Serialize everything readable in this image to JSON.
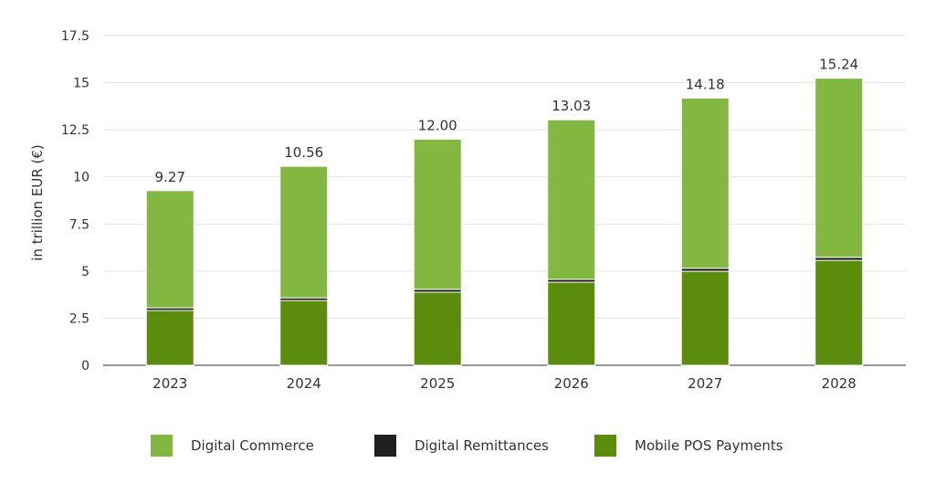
{
  "chart_data": {
    "type": "bar",
    "stacked": true,
    "categories": [
      "2023",
      "2024",
      "2025",
      "2026",
      "2027",
      "2028"
    ],
    "series": [
      {
        "name": "Mobile POS Payments",
        "color": "#5b8c0c",
        "values": [
          2.91,
          3.44,
          3.88,
          4.41,
          4.99,
          5.57
        ]
      },
      {
        "name": "Digital Remittances",
        "color": "#1f1f1f",
        "values": [
          0.14,
          0.14,
          0.15,
          0.15,
          0.16,
          0.16
        ]
      },
      {
        "name": "Digital Commerce",
        "color": "#82b840",
        "values": [
          6.22,
          6.98,
          7.97,
          8.47,
          9.03,
          9.51
        ]
      }
    ],
    "totals": [
      "9.27",
      "10.56",
      "12.00",
      "13.03",
      "14.18",
      "15.24"
    ],
    "ylabel": "in trillion EUR (€)",
    "ylim": [
      0,
      17.5
    ],
    "yticks": [
      "0",
      "2.5",
      "5",
      "7.5",
      "10",
      "12.5",
      "15",
      "17.5"
    ],
    "grid": true,
    "legend": {
      "placement": "bottom",
      "entries": [
        "Digital Commerce",
        "Digital Remittances",
        "Mobile POS Payments"
      ]
    }
  }
}
